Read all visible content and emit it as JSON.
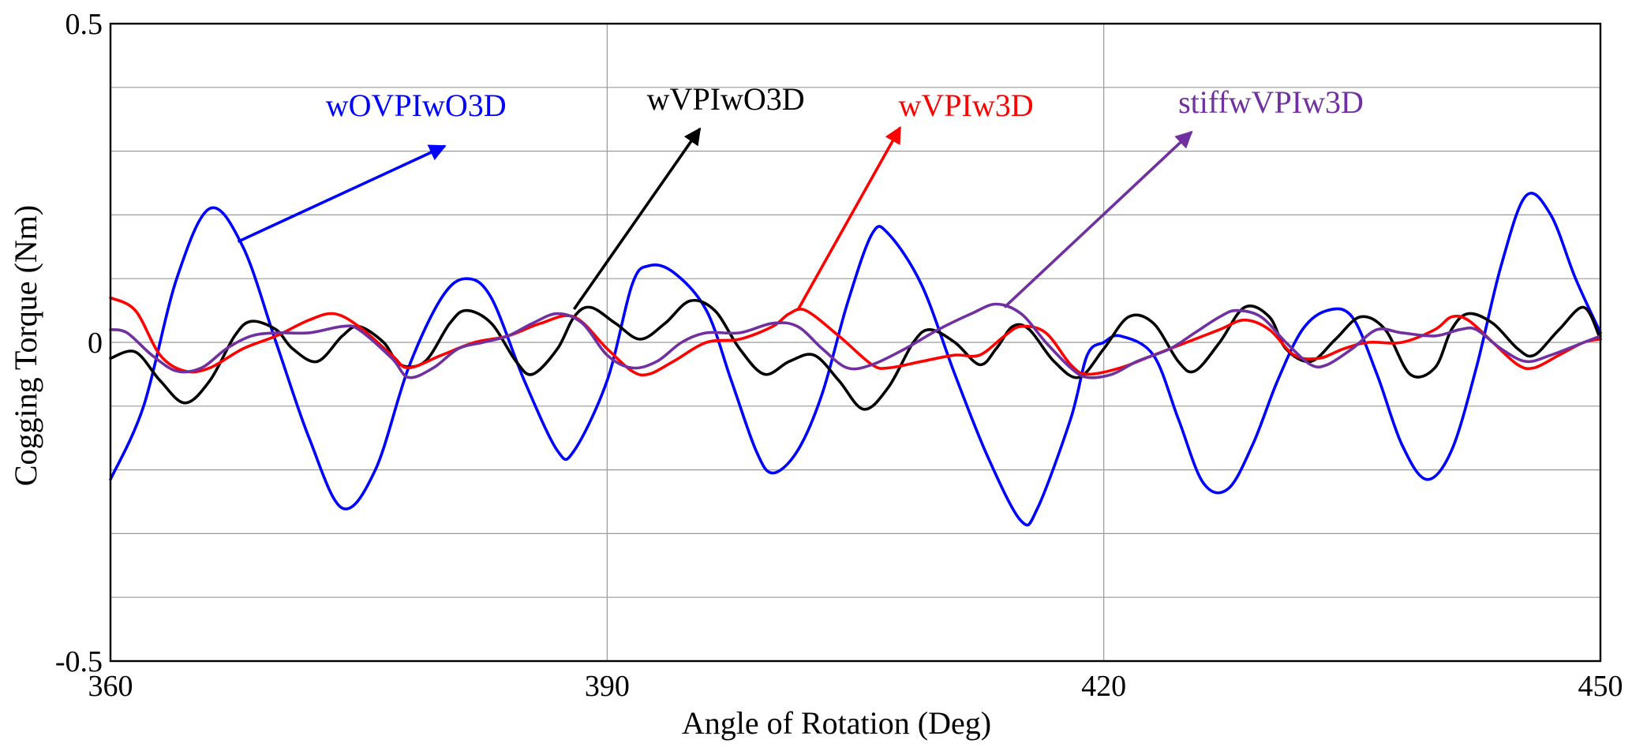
{
  "chart_data": {
    "type": "line",
    "title": "",
    "xlabel": "Angle of Rotation (Deg)",
    "ylabel": "Cogging Torque (Nm)",
    "xlim": [
      360,
      450
    ],
    "ylim": [
      -0.5,
      0.5
    ],
    "xticks": [
      360,
      390,
      420,
      450
    ],
    "xtick_labels": [
      "360",
      "390",
      "420",
      "450"
    ],
    "yticks": [
      -0.5,
      0,
      0.5
    ],
    "ytick_labels": [
      "-0.5",
      "0",
      "0.5"
    ],
    "ygrid": [
      -0.4,
      -0.3,
      -0.2,
      -0.1,
      0,
      0.1,
      0.2,
      0.3,
      0.4
    ],
    "grid": true,
    "series": [
      {
        "name": "wOVPIwO3D",
        "color": "#0000ff",
        "points": [
          [
            360,
            -0.215
          ],
          [
            362,
            -0.1
          ],
          [
            364,
            0.1
          ],
          [
            366,
            0.21
          ],
          [
            368,
            0.15
          ],
          [
            370,
            0.0
          ],
          [
            372,
            -0.15
          ],
          [
            374,
            -0.26
          ],
          [
            376,
            -0.2
          ],
          [
            378,
            -0.04
          ],
          [
            380,
            0.07
          ],
          [
            381.5,
            0.1
          ],
          [
            383,
            0.07
          ],
          [
            385,
            -0.06
          ],
          [
            387,
            -0.17
          ],
          [
            388,
            -0.17
          ],
          [
            390,
            -0.06
          ],
          [
            391.5,
            0.09
          ],
          [
            392.5,
            0.12
          ],
          [
            394,
            0.11
          ],
          [
            396,
            0.05
          ],
          [
            397.5,
            -0.06
          ],
          [
            399,
            -0.17
          ],
          [
            400,
            -0.205
          ],
          [
            401.5,
            -0.17
          ],
          [
            403,
            -0.08
          ],
          [
            404.5,
            0.06
          ],
          [
            406,
            0.17
          ],
          [
            407,
            0.17
          ],
          [
            409,
            0.09
          ],
          [
            411,
            -0.05
          ],
          [
            413,
            -0.18
          ],
          [
            415,
            -0.28
          ],
          [
            416,
            -0.26
          ],
          [
            418,
            -0.12
          ],
          [
            419,
            -0.02
          ],
          [
            420,
            0.0
          ],
          [
            421,
            0.01
          ],
          [
            423,
            -0.02
          ],
          [
            424.5,
            -0.12
          ],
          [
            426,
            -0.22
          ],
          [
            427.5,
            -0.23
          ],
          [
            429,
            -0.16
          ],
          [
            430.5,
            -0.06
          ],
          [
            432,
            0.02
          ],
          [
            433.5,
            0.05
          ],
          [
            435,
            0.04
          ],
          [
            436.5,
            -0.05
          ],
          [
            438,
            -0.16
          ],
          [
            439.5,
            -0.215
          ],
          [
            441,
            -0.17
          ],
          [
            442.5,
            -0.04
          ],
          [
            444,
            0.12
          ],
          [
            445.5,
            0.23
          ],
          [
            447,
            0.2
          ],
          [
            448.5,
            0.1
          ],
          [
            450,
            0.015
          ]
        ]
      },
      {
        "name": "wVPIwO3D",
        "color": "#000000",
        "points": [
          [
            360,
            -0.025
          ],
          [
            361.5,
            -0.015
          ],
          [
            363,
            -0.06
          ],
          [
            364.5,
            -0.095
          ],
          [
            366,
            -0.06
          ],
          [
            367.5,
            0.01
          ],
          [
            368.5,
            0.033
          ],
          [
            370,
            0.02
          ],
          [
            371,
            -0.01
          ],
          [
            372.5,
            -0.03
          ],
          [
            374,
            0.01
          ],
          [
            375,
            0.025
          ],
          [
            376.5,
            0.0
          ],
          [
            377.5,
            -0.035
          ],
          [
            379,
            -0.03
          ],
          [
            380.5,
            0.03
          ],
          [
            381.5,
            0.05
          ],
          [
            383,
            0.03
          ],
          [
            384.5,
            -0.03
          ],
          [
            385.5,
            -0.05
          ],
          [
            387,
            -0.01
          ],
          [
            388,
            0.04
          ],
          [
            389,
            0.055
          ],
          [
            390.5,
            0.03
          ],
          [
            392,
            0.005
          ],
          [
            393.5,
            0.03
          ],
          [
            395,
            0.065
          ],
          [
            396.5,
            0.05
          ],
          [
            398,
            -0.01
          ],
          [
            399.5,
            -0.05
          ],
          [
            401,
            -0.03
          ],
          [
            402.5,
            -0.02
          ],
          [
            404,
            -0.06
          ],
          [
            405.5,
            -0.105
          ],
          [
            407,
            -0.07
          ],
          [
            408.5,
            0.0
          ],
          [
            409.5,
            0.02
          ],
          [
            411,
            0.0
          ],
          [
            412.5,
            -0.035
          ],
          [
            413.5,
            -0.01
          ],
          [
            414.5,
            0.025
          ],
          [
            415.5,
            0.02
          ],
          [
            417,
            -0.03
          ],
          [
            418.5,
            -0.055
          ],
          [
            420,
            -0.01
          ],
          [
            421.5,
            0.04
          ],
          [
            423,
            0.03
          ],
          [
            424.5,
            -0.03
          ],
          [
            425.5,
            -0.045
          ],
          [
            427,
            0.0
          ],
          [
            428.5,
            0.055
          ],
          [
            430,
            0.04
          ],
          [
            431,
            -0.01
          ],
          [
            432.5,
            -0.03
          ],
          [
            434,
            0.005
          ],
          [
            435.5,
            0.04
          ],
          [
            437,
            0.02
          ],
          [
            438.5,
            -0.05
          ],
          [
            440,
            -0.04
          ],
          [
            441,
            0.02
          ],
          [
            442,
            0.045
          ],
          [
            443.5,
            0.03
          ],
          [
            445,
            -0.01
          ],
          [
            446,
            -0.02
          ],
          [
            447.5,
            0.02
          ],
          [
            449,
            0.055
          ],
          [
            450,
            0.005
          ]
        ]
      },
      {
        "name": "wVPIw3D",
        "color": "#ff0000",
        "points": [
          [
            360,
            0.07
          ],
          [
            361.5,
            0.05
          ],
          [
            363,
            -0.02
          ],
          [
            364.5,
            -0.045
          ],
          [
            366,
            -0.04
          ],
          [
            368,
            -0.01
          ],
          [
            370,
            0.01
          ],
          [
            372,
            0.035
          ],
          [
            373.5,
            0.045
          ],
          [
            375,
            0.025
          ],
          [
            377,
            -0.02
          ],
          [
            378,
            -0.04
          ],
          [
            380,
            -0.02
          ],
          [
            382,
            0.0
          ],
          [
            384,
            0.01
          ],
          [
            386,
            0.03
          ],
          [
            388,
            0.04
          ],
          [
            390,
            -0.01
          ],
          [
            391.5,
            -0.045
          ],
          [
            392.5,
            -0.05
          ],
          [
            394,
            -0.03
          ],
          [
            396,
            0.0
          ],
          [
            398,
            0.005
          ],
          [
            400,
            0.025
          ],
          [
            401,
            0.045
          ],
          [
            402,
            0.05
          ],
          [
            404,
            0.01
          ],
          [
            406,
            -0.035
          ],
          [
            407,
            -0.04
          ],
          [
            409,
            -0.03
          ],
          [
            411,
            -0.02
          ],
          [
            412.5,
            -0.02
          ],
          [
            414,
            0.01
          ],
          [
            415,
            0.025
          ],
          [
            416.5,
            0.015
          ],
          [
            418,
            -0.035
          ],
          [
            419,
            -0.05
          ],
          [
            421,
            -0.04
          ],
          [
            423,
            -0.02
          ],
          [
            425,
            0.0
          ],
          [
            427,
            0.02
          ],
          [
            428.5,
            0.035
          ],
          [
            430,
            0.02
          ],
          [
            431.5,
            -0.02
          ],
          [
            433,
            -0.025
          ],
          [
            434.5,
            -0.01
          ],
          [
            436,
            0.0
          ],
          [
            438,
            0.0
          ],
          [
            440,
            0.02
          ],
          [
            441,
            0.04
          ],
          [
            442,
            0.035
          ],
          [
            443.5,
            0.0
          ],
          [
            445,
            -0.035
          ],
          [
            446,
            -0.04
          ],
          [
            447.5,
            -0.02
          ],
          [
            449,
            0.0
          ],
          [
            450,
            0.005
          ]
        ]
      },
      {
        "name": "stiffwVPIw3D",
        "color": "#7030a0",
        "points": [
          [
            360,
            0.02
          ],
          [
            361,
            0.015
          ],
          [
            362.5,
            -0.02
          ],
          [
            364,
            -0.045
          ],
          [
            365.5,
            -0.04
          ],
          [
            367,
            -0.01
          ],
          [
            368.5,
            0.01
          ],
          [
            370,
            0.015
          ],
          [
            372,
            0.015
          ],
          [
            374,
            0.025
          ],
          [
            375,
            0.02
          ],
          [
            377,
            -0.025
          ],
          [
            378,
            -0.055
          ],
          [
            379.5,
            -0.04
          ],
          [
            381,
            -0.01
          ],
          [
            382.5,
            0.0
          ],
          [
            384,
            0.01
          ],
          [
            385.5,
            0.03
          ],
          [
            387,
            0.045
          ],
          [
            388.5,
            0.03
          ],
          [
            390,
            -0.02
          ],
          [
            391.5,
            -0.04
          ],
          [
            393,
            -0.03
          ],
          [
            394.5,
            0.0
          ],
          [
            396,
            0.015
          ],
          [
            398,
            0.015
          ],
          [
            400,
            0.03
          ],
          [
            401.5,
            0.025
          ],
          [
            403,
            -0.01
          ],
          [
            404.5,
            -0.04
          ],
          [
            406,
            -0.035
          ],
          [
            408,
            -0.01
          ],
          [
            410,
            0.02
          ],
          [
            412,
            0.045
          ],
          [
            413.5,
            0.06
          ],
          [
            415,
            0.045
          ],
          [
            416.5,
            0.0
          ],
          [
            418,
            -0.04
          ],
          [
            419,
            -0.055
          ],
          [
            420.5,
            -0.05
          ],
          [
            422,
            -0.03
          ],
          [
            424,
            -0.01
          ],
          [
            425.5,
            0.015
          ],
          [
            427,
            0.04
          ],
          [
            428,
            0.05
          ],
          [
            429.5,
            0.04
          ],
          [
            431,
            0.0
          ],
          [
            432.5,
            -0.035
          ],
          [
            433.5,
            -0.035
          ],
          [
            435,
            -0.01
          ],
          [
            436.5,
            0.02
          ],
          [
            438,
            0.015
          ],
          [
            440,
            0.01
          ],
          [
            441.5,
            0.02
          ],
          [
            442.5,
            0.02
          ],
          [
            444,
            -0.01
          ],
          [
            445.5,
            -0.03
          ],
          [
            447,
            -0.02
          ],
          [
            449,
            0.0
          ],
          [
            450,
            0.01
          ]
        ]
      }
    ],
    "annotations": [
      {
        "text": "wOVPIwO3D",
        "color": "#0000ff",
        "label_x": 373,
        "label_y": 0.355,
        "arrow_from": [
          367.7,
          0.158
        ],
        "arrow_to": [
          380.2,
          0.308
        ]
      },
      {
        "text": "wVPIwO3D",
        "color": "#000000",
        "label_x": 392.4,
        "label_y": 0.365,
        "arrow_from": [
          388.0,
          0.052
        ],
        "arrow_to": [
          395.6,
          0.335
        ]
      },
      {
        "text": "wVPIw3D",
        "color": "#ff0000",
        "label_x": 407.6,
        "label_y": 0.355,
        "arrow_from": [
          401.5,
          0.05
        ],
        "arrow_to": [
          407.7,
          0.337
        ]
      },
      {
        "text": "stiffwVPIw3D",
        "color": "#7030a0",
        "label_x": 424.5,
        "label_y": 0.36,
        "arrow_from": [
          414.0,
          0.055
        ],
        "arrow_to": [
          425.3,
          0.33
        ]
      }
    ]
  }
}
